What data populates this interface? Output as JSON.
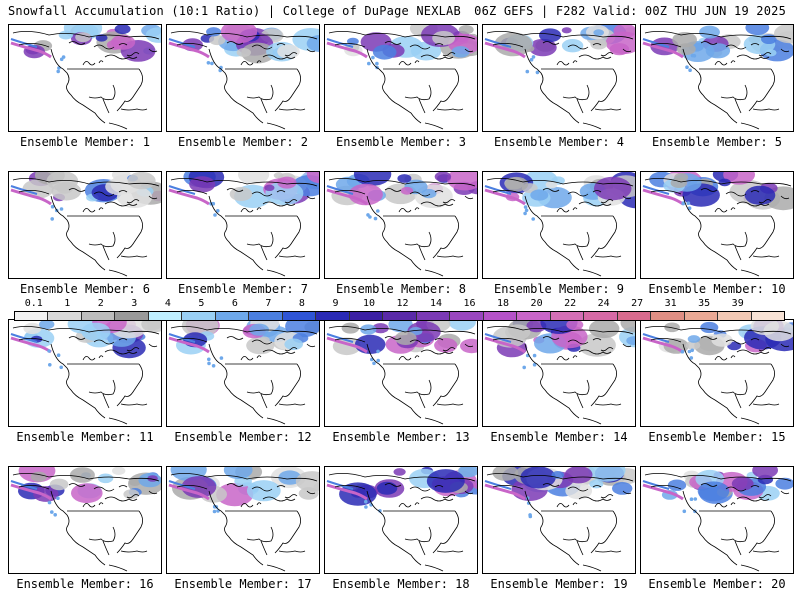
{
  "header": {
    "title": "Snowfall Accumulation (10:1 Ratio) | College of DuPage NEXLAB",
    "run_info": "06Z GEFS | F282 Valid: 00Z THU JUN 19 2025"
  },
  "panels": [
    {
      "label": "Ensemble Member: 1"
    },
    {
      "label": "Ensemble Member: 2"
    },
    {
      "label": "Ensemble Member: 3"
    },
    {
      "label": "Ensemble Member: 4"
    },
    {
      "label": "Ensemble Member: 5"
    },
    {
      "label": "Ensemble Member: 6"
    },
    {
      "label": "Ensemble Member: 7"
    },
    {
      "label": "Ensemble Member: 8"
    },
    {
      "label": "Ensemble Member: 9"
    },
    {
      "label": "Ensemble Member: 10"
    },
    {
      "label": "Ensemble Member: 11"
    },
    {
      "label": "Ensemble Member: 12"
    },
    {
      "label": "Ensemble Member: 13"
    },
    {
      "label": "Ensemble Member: 14"
    },
    {
      "label": "Ensemble Member: 15"
    },
    {
      "label": "Ensemble Member: 16"
    },
    {
      "label": "Ensemble Member: 17"
    },
    {
      "label": "Ensemble Member: 18"
    },
    {
      "label": "Ensemble Member: 19"
    },
    {
      "label": "Ensemble Member: 20"
    }
  ],
  "color_scale": {
    "ticks": [
      "0.1",
      "1",
      "2",
      "3",
      "4",
      "5",
      "6",
      "7",
      "8",
      "9",
      "10",
      "12",
      "14",
      "16",
      "18",
      "20",
      "22",
      "24",
      "27",
      "31",
      "35",
      "39"
    ],
    "colors": [
      "#f2f2f2",
      "#d9d9d9",
      "#bdbdbd",
      "#9a9a9a",
      "#bfefff",
      "#9ad0f5",
      "#6ea8ea",
      "#4b7fe0",
      "#2f55d6",
      "#2a2ab5",
      "#3b1fa3",
      "#5a2aa8",
      "#7b3ab5",
      "#9a46bf",
      "#b552c8",
      "#c865c8",
      "#d46fb6",
      "#d66aa6",
      "#d86b8e",
      "#e08f84",
      "#eaa995",
      "#f2c8b4",
      "#f8e3d6"
    ]
  }
}
